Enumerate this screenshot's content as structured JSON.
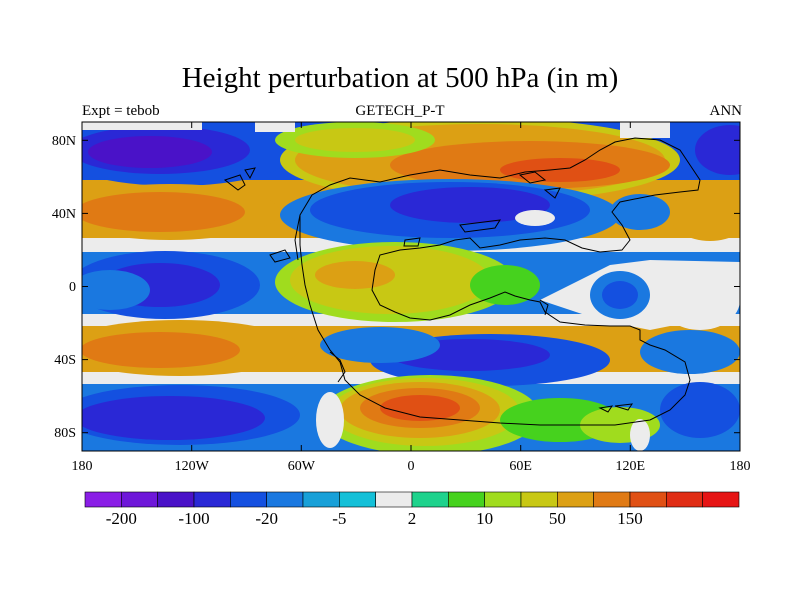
{
  "figure": {
    "title": "Height perturbation at 500 hPa (in m)",
    "subtitle": "GETECH_P-T",
    "left_label": "Expt = tebob",
    "right_label": "ANN"
  },
  "map": {
    "projection": "cylindrical equidistant",
    "lon_range": [
      -180,
      180
    ],
    "lat_range": [
      -90,
      90
    ],
    "x_ticks": [
      "180",
      "120W",
      "60W",
      "0",
      "60E",
      "120E",
      "180"
    ],
    "y_ticks": [
      "80N",
      "40N",
      "0",
      "40S",
      "80S"
    ],
    "ocean_background": "#2f5fdc"
  },
  "colorbar": {
    "colors": [
      "#8a1ee6",
      "#6e17d9",
      "#4a12c8",
      "#2a28d6",
      "#1450e0",
      "#1a78e0",
      "#18a0d8",
      "#14c0d8",
      "#ececec",
      "#1ed28c",
      "#46d21e",
      "#a0dc1e",
      "#c8c814",
      "#dca014",
      "#e07a14",
      "#e05014",
      "#e02d14",
      "#e61414"
    ],
    "labels": [
      "-200",
      "-100",
      "-20",
      "-5",
      "2",
      "10",
      "50",
      "150"
    ]
  },
  "chart_data": {
    "type": "heatmap",
    "title": "Height perturbation at 500 hPa (in m)",
    "subtitle": "GETECH_P-T",
    "x_ticks": [
      "180",
      "120W",
      "60W",
      "0",
      "60E",
      "120E",
      "180"
    ],
    "y_ticks": [
      "80N",
      "40N",
      "0",
      "40S",
      "80S"
    ],
    "colorbar_labels": [
      "-200",
      "-100",
      "-20",
      "-5",
      "2",
      "10",
      "50",
      "150"
    ]
  }
}
